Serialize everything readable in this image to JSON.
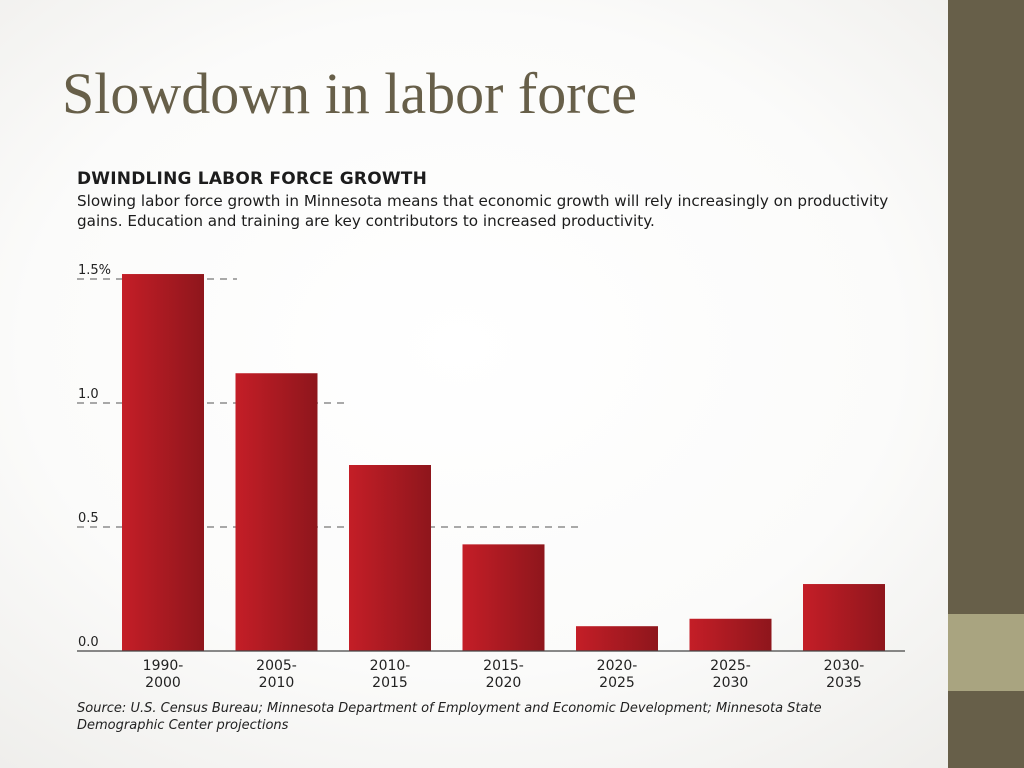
{
  "slide": {
    "title": "Slowdown in labor force"
  },
  "theme": {
    "sidebar_color": "#675f49",
    "sidebar_accent_color": "#a9a480",
    "title_color": "#675f49",
    "bar_color": "#b11d25"
  },
  "chart_data": {
    "type": "bar",
    "title": "DWINDLING LABOR FORCE GROWTH",
    "subtitle": "Slowing labor force growth in Minnesota means that economic growth will rely increasingly on productivity gains.  Education and training are key contributors to increased productivity.",
    "categories": [
      "1990-\n2000",
      "2005-\n2010",
      "2010-\n2015",
      "2015-\n2020",
      "2020-\n2025",
      "2025-\n2030",
      "2030-\n2035"
    ],
    "values": [
      1.52,
      1.12,
      0.75,
      0.43,
      0.1,
      0.13,
      0.27
    ],
    "yticks": [
      "0.0",
      "0.5",
      "1.0",
      "1.5%"
    ],
    "ytick_values": [
      0,
      0.5,
      1.0,
      1.5
    ],
    "ylim": [
      0,
      1.5
    ],
    "xlabel": "",
    "ylabel": "",
    "grid": "dashed",
    "legend": "none",
    "source": "Source: U.S. Census Bureau; Minnesota Department of Employment and Economic Development; Minnesota State Demographic Center projections"
  }
}
